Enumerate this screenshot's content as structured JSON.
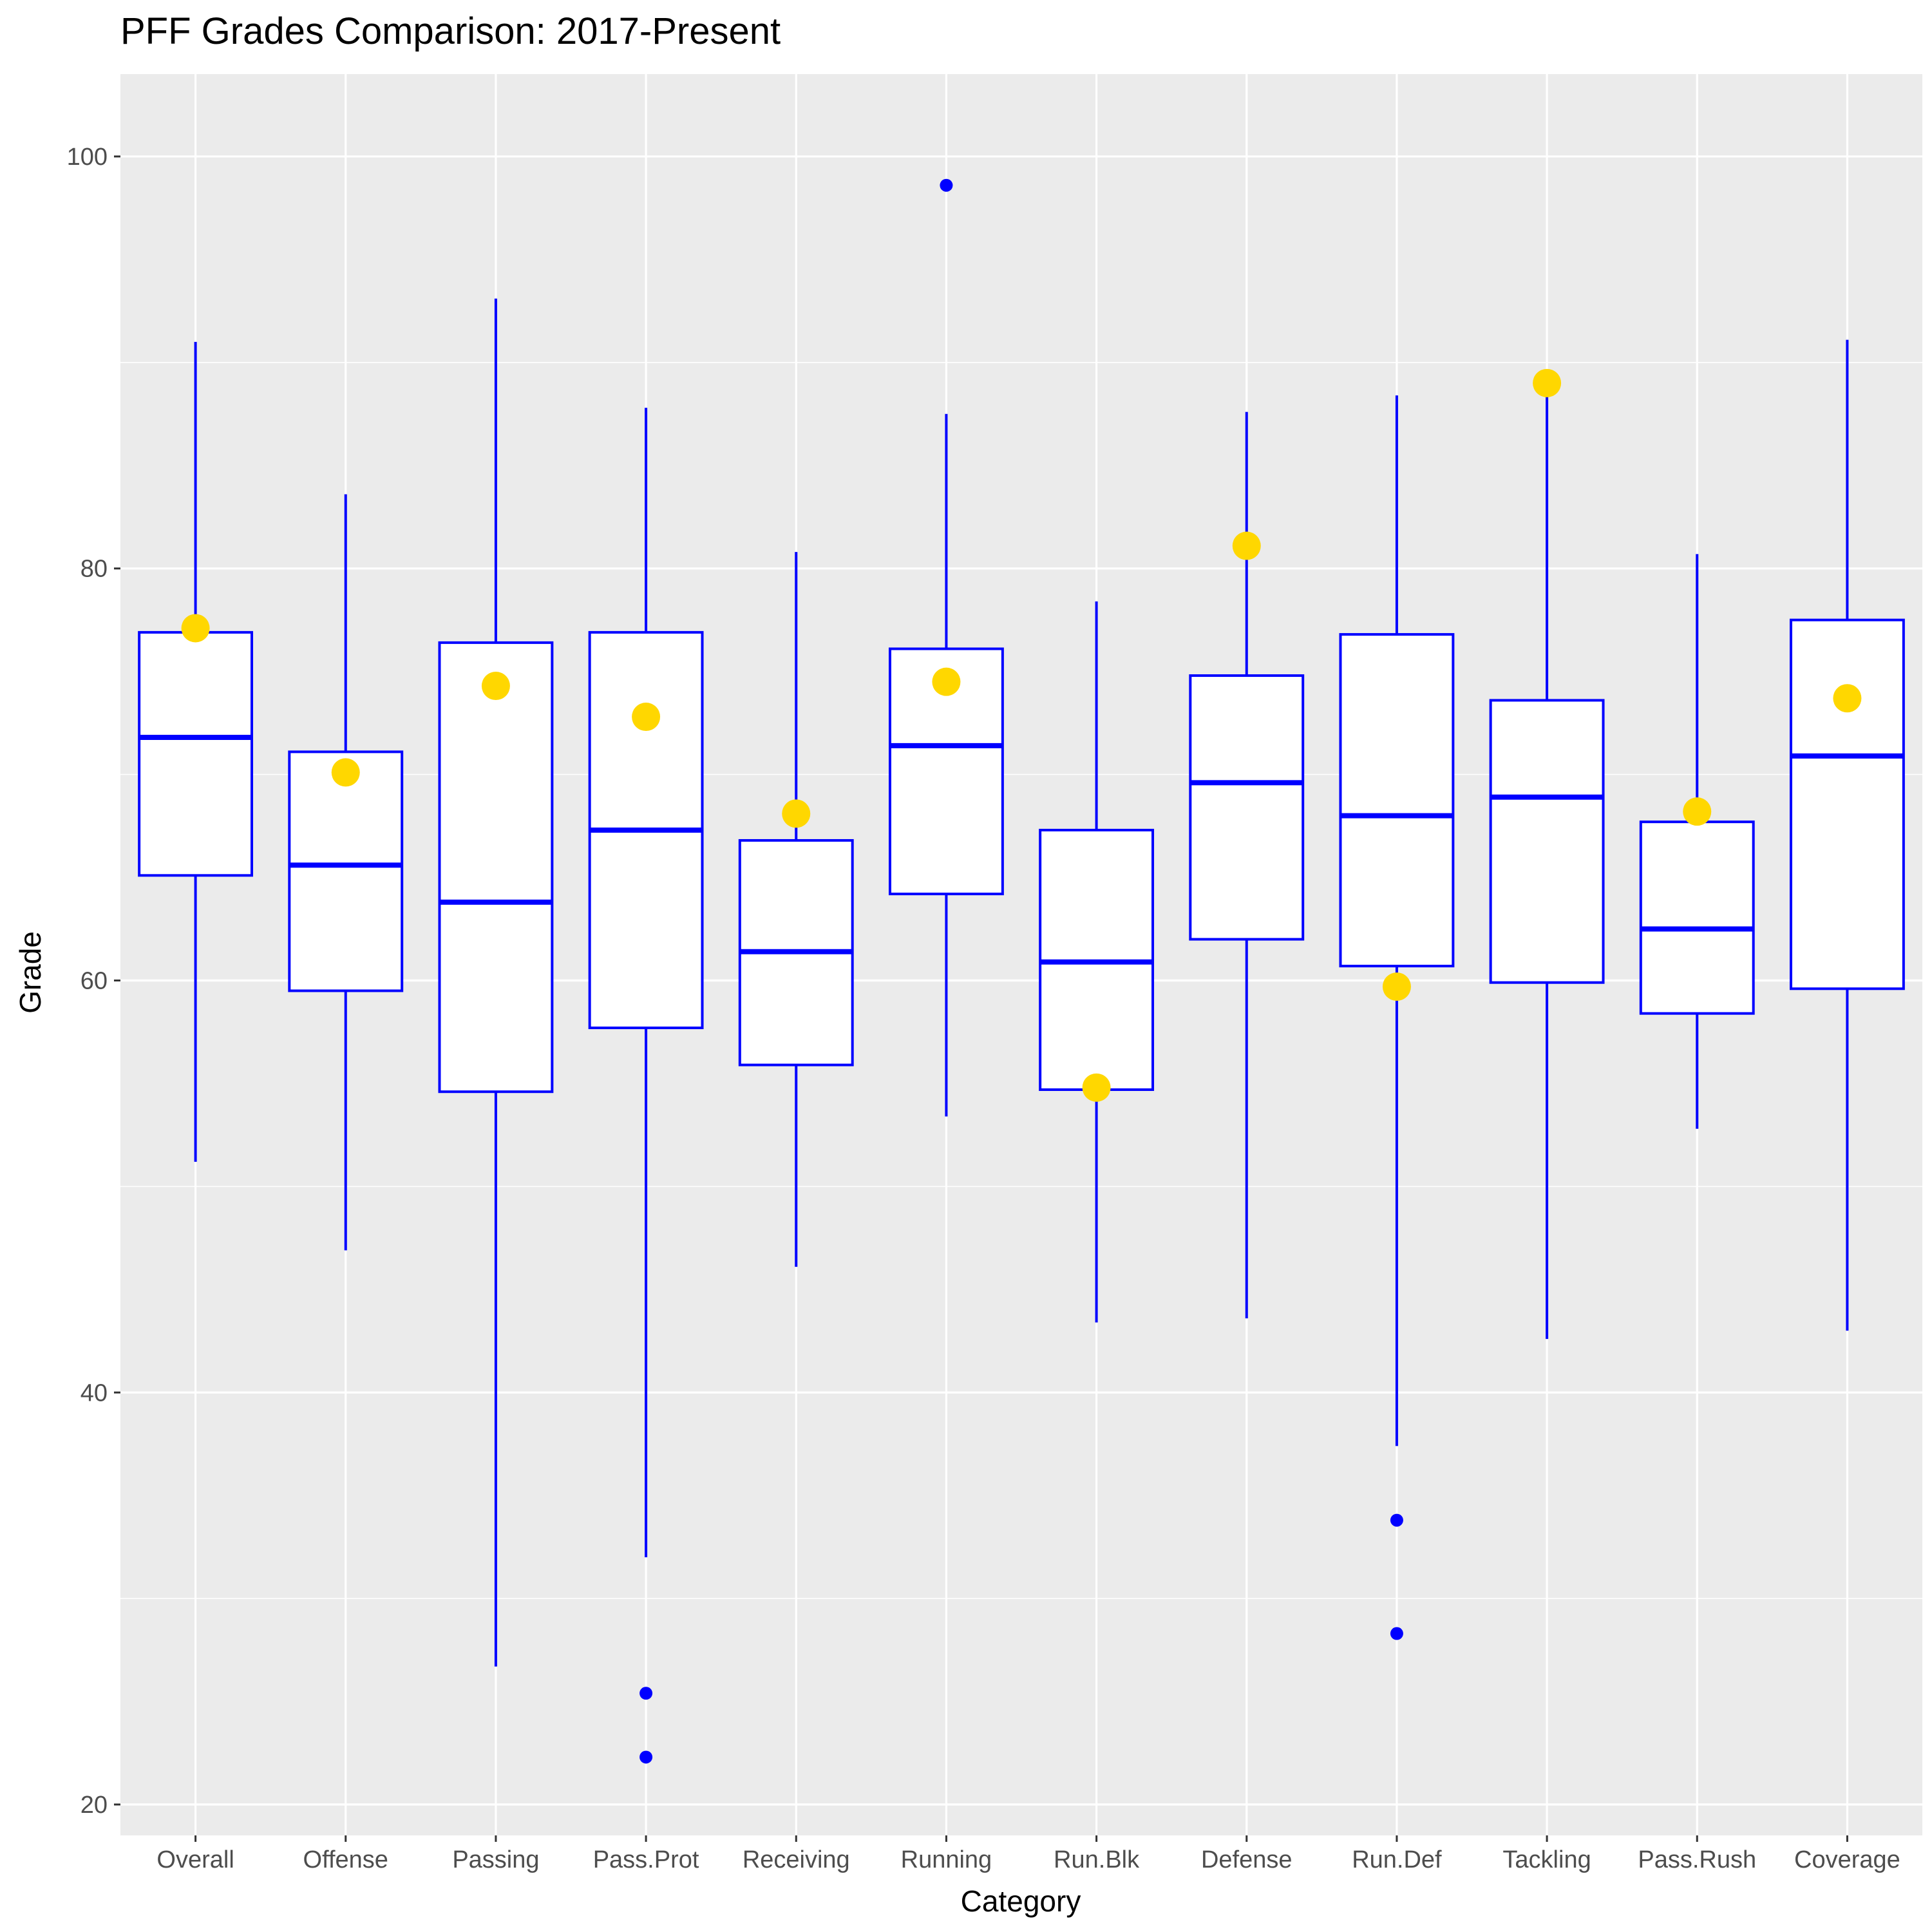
{
  "chart_data": {
    "type": "boxplot",
    "title": "PFF Grades Comparison: 2017-Present",
    "xlabel": "Category",
    "ylabel": "Grade",
    "ylim": [
      18.5,
      104
    ],
    "y_ticks": [
      20,
      40,
      60,
      80,
      100
    ],
    "grid": true,
    "colors": {
      "panel": "#ebebeb",
      "grid": "#ffffff",
      "box_stroke": "#0000ff",
      "box_fill": "#ffffff",
      "highlight": "#ffd700",
      "tick_text": "#4d4d4d"
    },
    "categories": [
      "Overall",
      "Offense",
      "Passing",
      "Pass.Prot",
      "Receiving",
      "Running",
      "Run.Blk",
      "Defense",
      "Run.Def",
      "Tackling",
      "Pass.Rush",
      "Coverage"
    ],
    "boxes": [
      {
        "category": "Overall",
        "min": 51.2,
        "q1": 65.1,
        "median": 71.8,
        "q3": 76.9,
        "max": 91.0,
        "outliers": []
      },
      {
        "category": "Offense",
        "min": 46.9,
        "q1": 59.5,
        "median": 65.6,
        "q3": 71.1,
        "max": 83.6,
        "outliers": []
      },
      {
        "category": "Passing",
        "min": 26.7,
        "q1": 54.6,
        "median": 63.8,
        "q3": 76.4,
        "max": 93.1,
        "outliers": []
      },
      {
        "category": "Pass.Prot",
        "min": 32.0,
        "q1": 57.7,
        "median": 67.3,
        "q3": 76.9,
        "max": 87.8,
        "outliers": [
          25.4,
          22.3
        ]
      },
      {
        "category": "Receiving",
        "min": 46.1,
        "q1": 55.9,
        "median": 61.4,
        "q3": 66.8,
        "max": 80.8,
        "outliers": []
      },
      {
        "category": "Running",
        "min": 53.4,
        "q1": 64.2,
        "median": 71.4,
        "q3": 76.1,
        "max": 87.5,
        "outliers": [
          98.6
        ]
      },
      {
        "category": "Run.Blk",
        "min": 43.4,
        "q1": 54.7,
        "median": 60.9,
        "q3": 67.3,
        "max": 78.4,
        "outliers": []
      },
      {
        "category": "Defense",
        "min": 43.6,
        "q1": 62.0,
        "median": 69.6,
        "q3": 74.8,
        "max": 87.6,
        "outliers": []
      },
      {
        "category": "Run.Def",
        "min": 37.4,
        "q1": 60.7,
        "median": 68.0,
        "q3": 76.8,
        "max": 88.4,
        "outliers": [
          33.8,
          28.3
        ]
      },
      {
        "category": "Tackling",
        "min": 42.6,
        "q1": 59.9,
        "median": 68.9,
        "q3": 73.6,
        "max": 88.6,
        "outliers": []
      },
      {
        "category": "Pass.Rush",
        "min": 52.8,
        "q1": 58.4,
        "median": 62.5,
        "q3": 67.7,
        "max": 80.7,
        "outliers": []
      },
      {
        "category": "Coverage",
        "min": 43.0,
        "q1": 59.6,
        "median": 70.9,
        "q3": 77.5,
        "max": 91.1,
        "outliers": []
      }
    ],
    "highlight_points": [
      {
        "category": "Overall",
        "value": 77.1
      },
      {
        "category": "Offense",
        "value": 70.1
      },
      {
        "category": "Passing",
        "value": 74.3
      },
      {
        "category": "Pass.Prot",
        "value": 72.8
      },
      {
        "category": "Receiving",
        "value": 68.1
      },
      {
        "category": "Running",
        "value": 74.5
      },
      {
        "category": "Run.Blk",
        "value": 54.8
      },
      {
        "category": "Defense",
        "value": 81.1
      },
      {
        "category": "Run.Def",
        "value": 59.7
      },
      {
        "category": "Tackling",
        "value": 89.0
      },
      {
        "category": "Pass.Rush",
        "value": 68.2
      },
      {
        "category": "Coverage",
        "value": 73.7
      }
    ]
  }
}
